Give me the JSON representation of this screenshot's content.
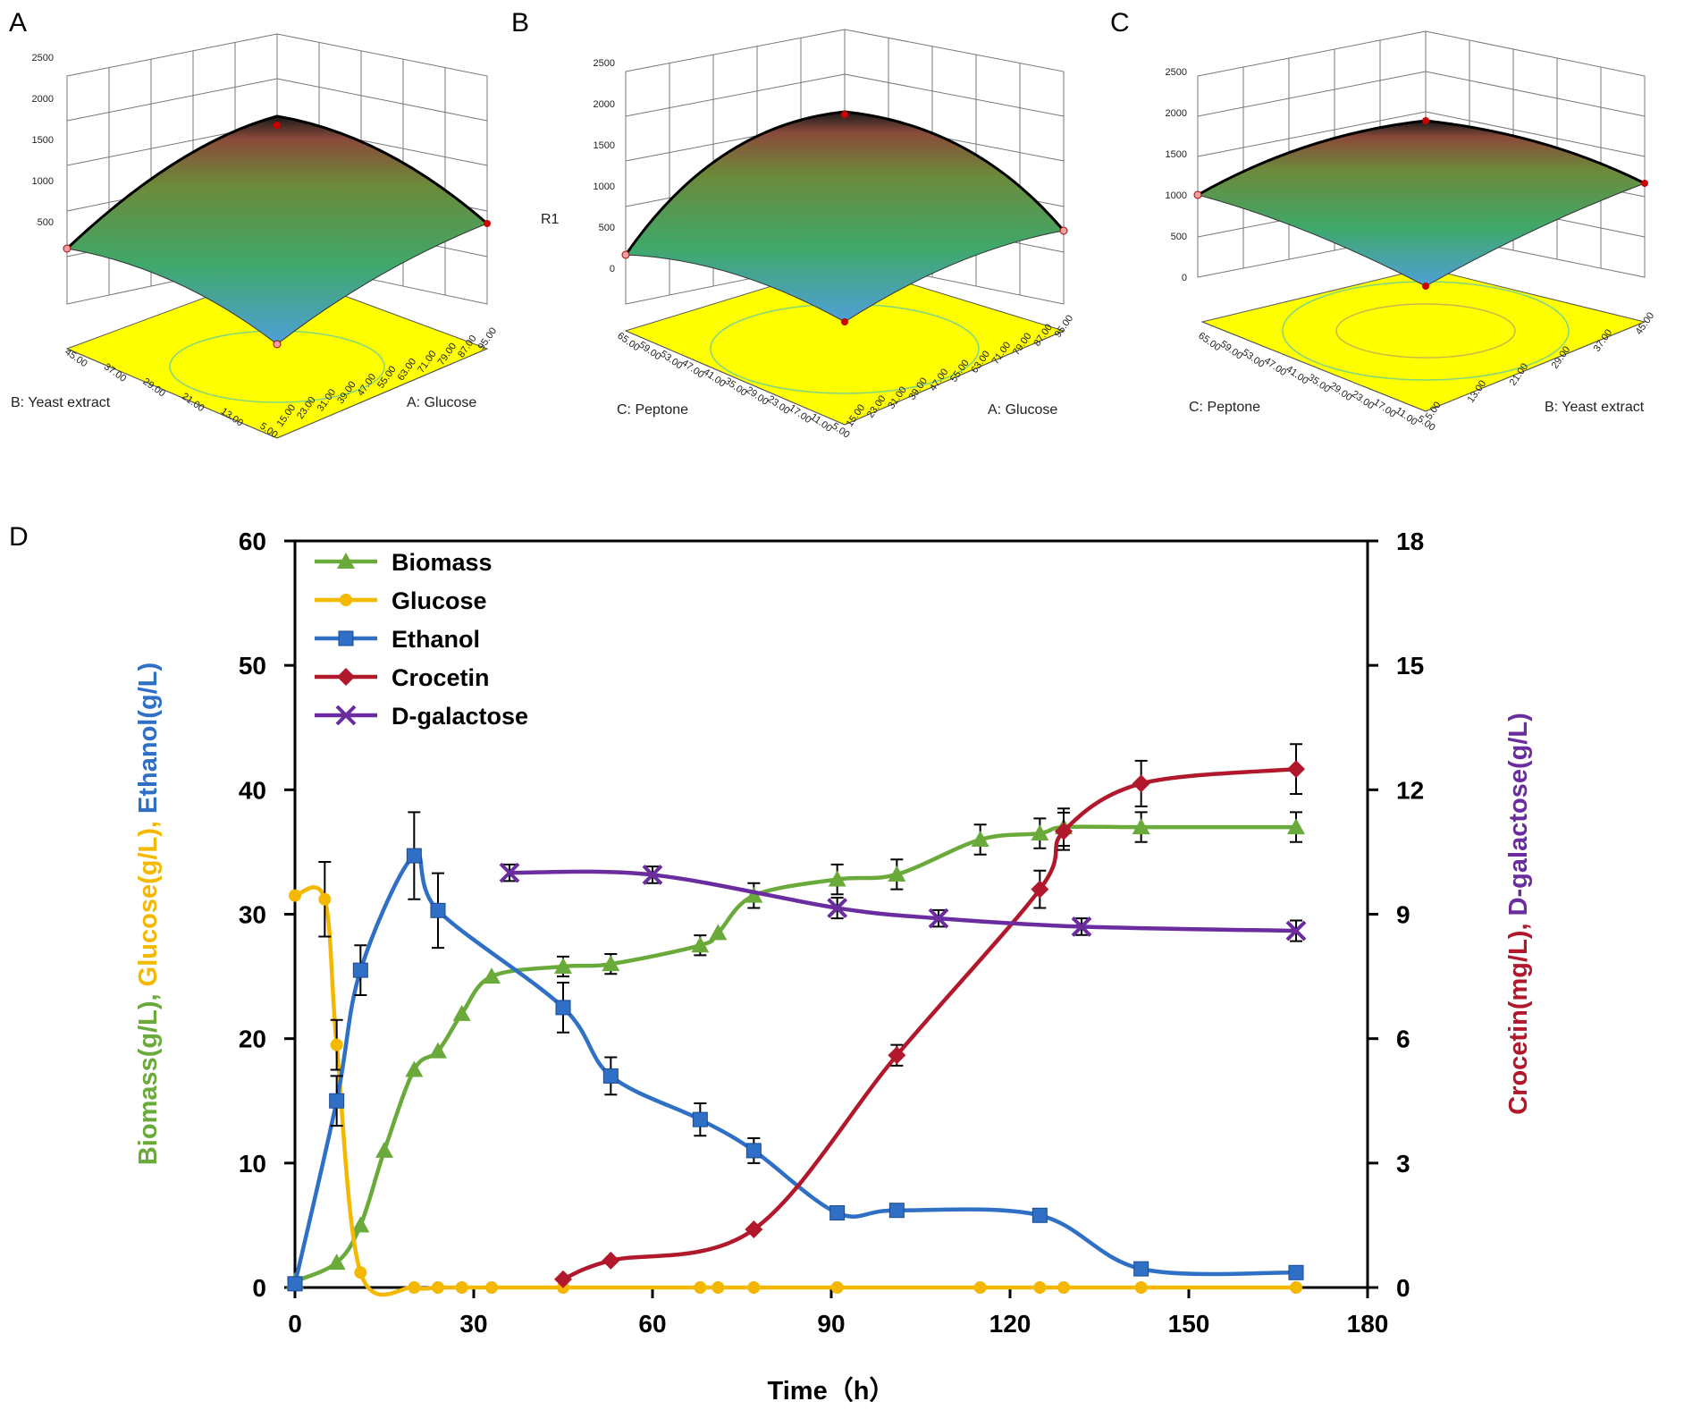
{
  "panels": {
    "a": "A",
    "b": "B",
    "c": "C",
    "d": "D"
  },
  "surface_plots": [
    {
      "id": "A",
      "z_ticks": [
        "2500",
        "2000",
        "1500",
        "1000",
        "500"
      ],
      "z_label": "",
      "left_axis": {
        "label": "B: Yeast extract",
        "ticks": [
          "45.00",
          "37.00",
          "29.00",
          "21.00",
          "13.00",
          "5.00"
        ]
      },
      "right_axis": {
        "label": "A: Glucose",
        "ticks": [
          "15.00",
          "23.00",
          "31.00",
          "39.00",
          "47.00",
          "55.00",
          "63.00",
          "71.00",
          "79.00",
          "87.00",
          "95.00"
        ]
      }
    },
    {
      "id": "B",
      "z_ticks": [
        "2500",
        "2000",
        "1500",
        "1000",
        "500",
        "0"
      ],
      "z_label": "R1",
      "left_axis": {
        "label": "C: Peptone",
        "ticks": [
          "65.00",
          "59.00",
          "53.00",
          "47.00",
          "41.00",
          "35.00",
          "29.00",
          "23.00",
          "17.00",
          "11.00",
          "5.00"
        ]
      },
      "right_axis": {
        "label": "A: Glucose",
        "ticks": [
          "15.00",
          "23.00",
          "31.00",
          "39.00",
          "47.00",
          "55.00",
          "63.00",
          "71.00",
          "79.00",
          "87.00",
          "95.00"
        ]
      }
    },
    {
      "id": "C",
      "z_ticks": [
        "2500",
        "2000",
        "1500",
        "1000",
        "500",
        "0"
      ],
      "z_label": "",
      "left_axis": {
        "label": "C: Peptone",
        "ticks": [
          "65.00",
          "59.00",
          "53.00",
          "47.00",
          "41.00",
          "35.00",
          "29.00",
          "23.00",
          "17.00",
          "11.00",
          "5.00"
        ]
      },
      "right_axis": {
        "label": "B: Yeast extract",
        "ticks": [
          "5.00",
          "13.00",
          "21.00",
          "29.00",
          "37.00",
          "45.00"
        ]
      }
    }
  ],
  "chart_data": {
    "type": "line",
    "title": "",
    "xlabel": "Time（h）",
    "xlim": [
      0,
      180
    ],
    "xticks": [
      0,
      30,
      60,
      90,
      120,
      150,
      180
    ],
    "ylim_left": [
      0,
      60
    ],
    "yticks_left": [
      0,
      10,
      20,
      30,
      40,
      50,
      60
    ],
    "ylim_right": [
      0,
      18
    ],
    "yticks_right": [
      0,
      3,
      6,
      9,
      12,
      15,
      18
    ],
    "ylabel_left_parts": [
      {
        "text": "Biomass(g/L),",
        "color": "#6aaa3a"
      },
      {
        "text": " Glucose(g/L),",
        "color": "#f5b800"
      },
      {
        "text": " Ethanol(g/L)",
        "color": "#2f6fc6"
      }
    ],
    "ylabel_right_parts": [
      {
        "text": "Crocetin(mg/L),",
        "color": "#b2182b"
      },
      {
        "text": " D-galactose(g/L)",
        "color": "#6a2c9e"
      }
    ],
    "legend": [
      "Biomass",
      "Glucose",
      "Ethanol",
      "Crocetin",
      "D-galactose"
    ],
    "legend_position": "top-left",
    "series": [
      {
        "name": "Biomass",
        "color": "#6aaa3a",
        "marker": "triangle",
        "axis": "left",
        "x": [
          0,
          7,
          11,
          15,
          20,
          24,
          28,
          33,
          45,
          53,
          68,
          71,
          77,
          91,
          101,
          115,
          125,
          129,
          142,
          168
        ],
        "y": [
          0.5,
          2,
          5,
          11,
          17.5,
          19,
          22,
          25,
          25.8,
          26,
          27.5,
          28.5,
          31.5,
          32.8,
          33.2,
          36,
          36.5,
          37,
          37,
          37
        ],
        "err": [
          0,
          0,
          0,
          0,
          0,
          0,
          0,
          0,
          0.8,
          0.8,
          0.8,
          0,
          1,
          1.2,
          1.2,
          1.2,
          1.2,
          1.5,
          1.2,
          1.2
        ]
      },
      {
        "name": "Glucose",
        "color": "#f5b800",
        "marker": "circle",
        "axis": "left",
        "x": [
          0,
          5,
          7,
          11,
          20,
          24,
          28,
          33,
          45,
          68,
          71,
          77,
          91,
          115,
          125,
          129,
          142,
          168
        ],
        "y": [
          31.5,
          31.2,
          19.5,
          1.2,
          0,
          0,
          0,
          0,
          0,
          0,
          0,
          0,
          0,
          0,
          0,
          0,
          0,
          0
        ],
        "err": [
          0,
          3,
          2,
          0,
          0,
          0,
          0,
          0,
          0,
          0,
          0,
          0,
          0,
          0,
          0,
          0,
          0,
          0
        ]
      },
      {
        "name": "Ethanol",
        "color": "#2f6fc6",
        "marker": "square",
        "axis": "left",
        "x": [
          0,
          7,
          11,
          20,
          24,
          45,
          53,
          68,
          77,
          91,
          101,
          125,
          142,
          168
        ],
        "y": [
          0.3,
          15,
          25.5,
          34.7,
          30.3,
          22.5,
          17,
          13.5,
          11,
          6,
          6.2,
          5.8,
          1.5,
          1.2
        ],
        "err": [
          0,
          2,
          2,
          3.5,
          3,
          2,
          1.5,
          1.3,
          1,
          0,
          0,
          0,
          0,
          0
        ]
      },
      {
        "name": "Crocetin",
        "color": "#b2182b",
        "marker": "diamond",
        "axis": "right",
        "x": [
          45,
          53,
          77,
          101,
          125,
          129,
          142,
          168
        ],
        "y": [
          0.2,
          0.65,
          1.4,
          5.6,
          9.6,
          11,
          12.15,
          12.5
        ],
        "err": [
          0,
          0,
          0,
          0.25,
          0.45,
          0.45,
          0.55,
          0.6
        ]
      },
      {
        "name": "D-galactose",
        "color": "#6a2c9e",
        "marker": "cross",
        "axis": "right",
        "x": [
          36,
          60,
          91,
          108,
          132,
          168
        ],
        "y": [
          10,
          9.95,
          9.15,
          8.9,
          8.7,
          8.6
        ],
        "err": [
          0.2,
          0.2,
          0.25,
          0.2,
          0.2,
          0.25
        ]
      }
    ]
  }
}
